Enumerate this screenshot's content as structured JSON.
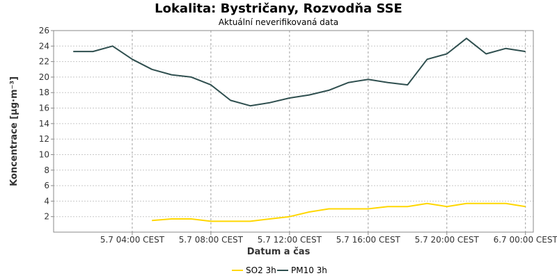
{
  "chart_data": {
    "type": "line",
    "title": "Lokalita: Bystričany, Rozvodňa SSE",
    "subtitle": "Aktuální neverifikovaná data",
    "xlabel": "Datum a čas",
    "ylabel": "Koncentrace [µg·m⁻³]",
    "ylim": [
      0,
      26
    ],
    "yticks": [
      2,
      4,
      6,
      8,
      10,
      12,
      14,
      16,
      18,
      20,
      22,
      24,
      26
    ],
    "x_hours": [
      1,
      2,
      3,
      4,
      5,
      6,
      7,
      8,
      9,
      10,
      11,
      12,
      13,
      14,
      15,
      16,
      17,
      18,
      19,
      20,
      21,
      22,
      23,
      24
    ],
    "xlim": [
      0,
      24.4
    ],
    "xtick_hours": [
      4,
      8,
      12,
      16,
      20,
      24
    ],
    "xtick_labels": [
      "5.7 04:00 CEST",
      "5.7 08:00 CEST",
      "5.7 12:00 CEST",
      "5.7 16:00 CEST",
      "5.7 20:00 CEST",
      "6.7 00:00 CEST"
    ],
    "grid": true,
    "legend_position": "bottom",
    "series": [
      {
        "name": "SO2 3h",
        "color": "#ffd700",
        "values": [
          null,
          null,
          null,
          null,
          1.5,
          1.7,
          1.7,
          1.4,
          1.4,
          1.4,
          1.7,
          2.0,
          2.6,
          3.0,
          3.0,
          3.0,
          3.3,
          3.3,
          3.7,
          3.3,
          3.7,
          3.7,
          3.7,
          3.3
        ]
      },
      {
        "name": "PM10 3h",
        "color": "#2f4f4f",
        "values": [
          23.3,
          23.3,
          24.0,
          22.3,
          21.0,
          20.3,
          20.0,
          19.0,
          17.0,
          16.3,
          16.7,
          17.3,
          17.7,
          18.3,
          19.3,
          19.7,
          19.3,
          19.0,
          22.3,
          23.0,
          25.0,
          23.0,
          23.7,
          23.3
        ]
      }
    ]
  }
}
